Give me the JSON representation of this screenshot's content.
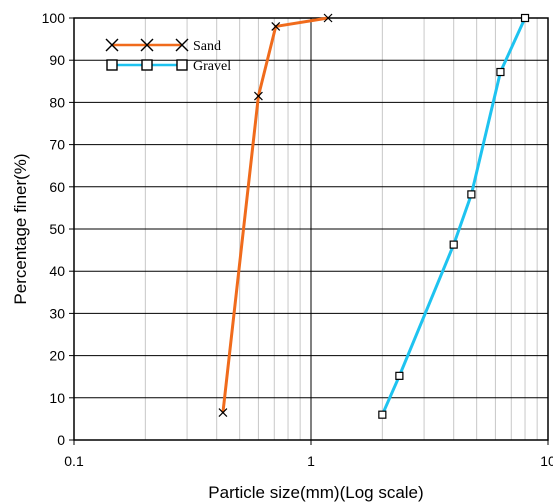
{
  "chart_data": {
    "type": "scatter",
    "title": "",
    "xlabel": "Particle size(mm)(Log scale)",
    "ylabel": "Percentage finer(%)",
    "x_scale": "log",
    "xlim": [
      0.1,
      10
    ],
    "ylim": [
      0,
      100
    ],
    "x_ticks": [
      0.1,
      1,
      10
    ],
    "x_tick_labels": [
      "0.1",
      "1",
      "10"
    ],
    "y_ticks": [
      0,
      10,
      20,
      30,
      40,
      50,
      60,
      70,
      80,
      90,
      100
    ],
    "y_tick_labels": [
      "0",
      "10",
      "20",
      "30",
      "40",
      "50",
      "60",
      "70",
      "80",
      "90",
      "100"
    ],
    "grid": true,
    "legend_position": "top-left",
    "series": [
      {
        "name": "Sand",
        "color": "#f06b1c",
        "marker": "x",
        "x": [
          0.425,
          0.6,
          0.71,
          1.18
        ],
        "y": [
          6.5,
          81.5,
          98,
          100
        ]
      },
      {
        "name": "Gravel",
        "color": "#1ec3f0",
        "marker": "square",
        "x": [
          2.0,
          2.36,
          4.0,
          4.75,
          6.3,
          8.0
        ],
        "y": [
          6,
          15.2,
          46.3,
          58.2,
          87.2,
          100
        ]
      }
    ]
  }
}
